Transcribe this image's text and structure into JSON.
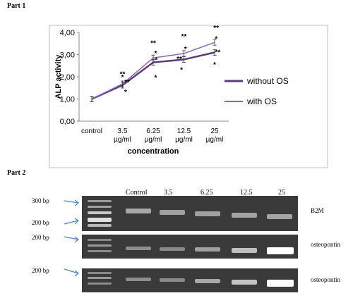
{
  "part1_label": "Part 1",
  "part2_label": "Part 2",
  "chart_data": {
    "type": "line",
    "title": "",
    "xlabel": "concentration",
    "ylabel": "ALP activity",
    "ylim": [
      0,
      4
    ],
    "yticks": [
      "0,00",
      "1,00",
      "2,00",
      "3,00",
      "4,00"
    ],
    "categories": [
      "control",
      "3.5 µg/ml",
      "6.25 µg/ml",
      "12.5 µg/ml",
      "25 µg/ml"
    ],
    "category_lines": [
      [
        "control",
        ""
      ],
      [
        "3.5",
        "µg/ml"
      ],
      [
        "6.25",
        "µg/ml"
      ],
      [
        "12.5",
        "µg/ml"
      ],
      [
        "25",
        "µg/ml"
      ]
    ],
    "grid": false,
    "legend_position": "right",
    "series": [
      {
        "name": "without OS",
        "values": [
          1.0,
          1.62,
          2.65,
          2.78,
          3.1
        ],
        "color": "#5a3a78",
        "width": 2.5
      },
      {
        "name": "with OS",
        "values": [
          1.0,
          1.68,
          2.85,
          3.05,
          3.55
        ],
        "color": "#8a64b8",
        "width": 1.5
      }
    ],
    "annotations": [
      {
        "x": 1,
        "y": 2.02,
        "text": "**"
      },
      {
        "x": 1,
        "y": 1.88,
        "text": "*"
      },
      {
        "x": 1.15,
        "y": 1.65,
        "text": "**"
      },
      {
        "x": 1.1,
        "y": 1.2,
        "text": "*"
      },
      {
        "x": 2,
        "y": 3.42,
        "text": "**"
      },
      {
        "x": 2.08,
        "y": 2.95,
        "text": "*"
      },
      {
        "x": 2.1,
        "y": 2.65,
        "text": "*"
      },
      {
        "x": 2.08,
        "y": 1.85,
        "text": "*"
      },
      {
        "x": 3.0,
        "y": 3.72,
        "text": "**"
      },
      {
        "x": 3.05,
        "y": 3.15,
        "text": "*"
      },
      {
        "x": 2.85,
        "y": 2.7,
        "text": "**"
      },
      {
        "x": 2.92,
        "y": 2.2,
        "text": "*"
      },
      {
        "x": 4.05,
        "y": 4.1,
        "text": "**"
      },
      {
        "x": 4.05,
        "y": 3.6,
        "text": "*"
      },
      {
        "x": 4.1,
        "y": 3.0,
        "text": "**"
      },
      {
        "x": 4.0,
        "y": 2.45,
        "text": "*"
      }
    ]
  },
  "gel": {
    "lanes": [
      "Control",
      "3.5",
      "6.25",
      "12.5",
      "25"
    ],
    "marker_labels": [
      "300 bp",
      "200 bp",
      "200 bp",
      "200 bp"
    ],
    "genes": [
      "B2M",
      "osteopontin",
      "osteopontin"
    ],
    "osteopontin_intensity": [
      0.35,
      0.3,
      0.5,
      0.75,
      1.0
    ]
  }
}
